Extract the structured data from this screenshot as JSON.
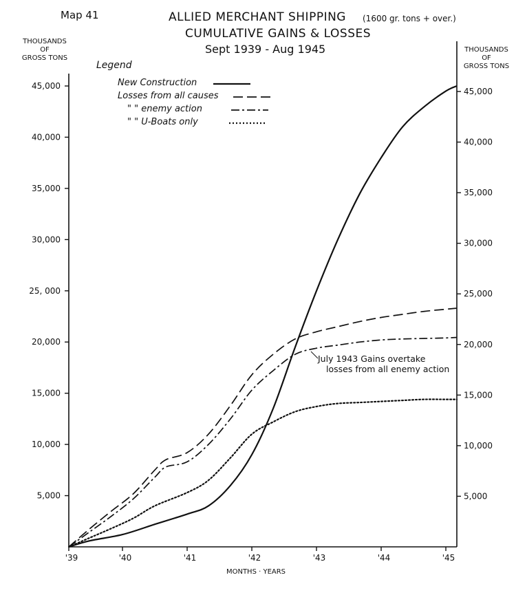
{
  "map_label": "Map 41",
  "title_line1": "ALLIED MERCHANT SHIPPING",
  "title_note": "(1600 gr. tons + over.)",
  "title_line2": "CUMULATIVE GAINS & LOSSES",
  "title_line3": "Sept 1939 - Aug 1945",
  "left_axis_title": [
    "THOUSANDS",
    "OF",
    "GROSS TONS"
  ],
  "right_axis_title": [
    "THOUSANDS",
    "OF",
    "GROSS TONS"
  ],
  "xlabel": "MONTHS · YEARS",
  "legend_title": "Legend",
  "legend_rows": [
    {
      "text": "New Construction",
      "series": 0
    },
    {
      "text": "Losses from all causes",
      "series": 1
    },
    {
      "text": "\"     \" enemy action",
      "series": 2
    },
    {
      "text": "\"     \" U-Boats only",
      "series": 3
    }
  ],
  "annotation": {
    "line1": "July 1943 Gains overtake",
    "line2": "losses from all enemy action",
    "x": 1943.55,
    "y": 18800
  },
  "colors": {
    "ink": "#111111"
  },
  "chart_data": {
    "type": "line",
    "xlim": [
      1939.67,
      1945.67
    ],
    "ylim": [
      0,
      45000
    ],
    "x_ticks": [
      1939.67,
      1940.5,
      1941.5,
      1942.5,
      1943.5,
      1944.5,
      1945.5
    ],
    "x_tick_labels": [
      "'39",
      "'40",
      "'41",
      "'42",
      "'43",
      "'44",
      "'45"
    ],
    "left_ticks": [
      5000,
      10000,
      15000,
      20000,
      25000,
      30000,
      35000,
      40000,
      45000
    ],
    "left_tick_labels": [
      "5,000",
      "10,000",
      "15,000",
      "20,000",
      "25, 000",
      "30,000",
      "35,000",
      "40,000",
      "45,000"
    ],
    "right_ticks": [
      5000,
      10000,
      15000,
      20000,
      25000,
      30000,
      35000,
      40000,
      45000
    ],
    "right_tick_labels": [
      "5,000",
      "10,000",
      "15,000",
      "20,000",
      "25,000",
      "30,000",
      "35,000",
      "40,000",
      "45,000"
    ],
    "series": [
      {
        "name": "New Construction",
        "style": "solid",
        "x": [
          1939.67,
          1940.0,
          1940.5,
          1941.0,
          1941.5,
          1941.83,
          1942.17,
          1942.5,
          1942.83,
          1943.17,
          1943.5,
          1943.83,
          1944.17,
          1944.5,
          1944.83,
          1945.17,
          1945.5,
          1945.67
        ],
        "y": [
          0,
          600,
          1200,
          2200,
          3200,
          4000,
          6000,
          9000,
          13500,
          19500,
          25000,
          30000,
          34500,
          38000,
          41000,
          43000,
          44500,
          45000
        ]
      },
      {
        "name": "Losses from all causes",
        "style": "dashed",
        "x": [
          1939.67,
          1940.0,
          1940.33,
          1940.67,
          1941.0,
          1941.17,
          1941.5,
          1941.83,
          1942.17,
          1942.5,
          1942.83,
          1943.17,
          1943.5,
          1943.83,
          1944.17,
          1944.5,
          1944.83,
          1945.17,
          1945.5,
          1945.67
        ],
        "y": [
          0,
          1800,
          3500,
          5200,
          7500,
          8500,
          9200,
          11000,
          13800,
          16800,
          18800,
          20300,
          21000,
          21500,
          22000,
          22400,
          22700,
          23000,
          23200,
          23300
        ]
      },
      {
        "name": "Losses from enemy action",
        "style": "dashdot",
        "x": [
          1939.67,
          1940.0,
          1940.33,
          1940.67,
          1941.0,
          1941.17,
          1941.5,
          1941.83,
          1942.17,
          1942.5,
          1942.83,
          1943.17,
          1943.5,
          1943.83,
          1944.17,
          1944.5,
          1944.83,
          1945.17,
          1945.5,
          1945.67
        ],
        "y": [
          0,
          1500,
          3000,
          4700,
          6800,
          7800,
          8300,
          10000,
          12500,
          15300,
          17200,
          18800,
          19400,
          19700,
          20000,
          20200,
          20300,
          20350,
          20400,
          20450
        ]
      },
      {
        "name": "Losses from U-Boats only",
        "style": "dotted",
        "x": [
          1939.67,
          1940.0,
          1940.33,
          1940.67,
          1941.0,
          1941.5,
          1941.83,
          1942.17,
          1942.5,
          1942.83,
          1943.17,
          1943.5,
          1943.83,
          1944.17,
          1944.5,
          1944.83,
          1945.17,
          1945.5,
          1945.67
        ],
        "y": [
          0,
          900,
          1800,
          2800,
          4000,
          5300,
          6500,
          8700,
          11000,
          12200,
          13200,
          13700,
          14000,
          14100,
          14200,
          14300,
          14400,
          14400,
          14400
        ]
      }
    ]
  }
}
